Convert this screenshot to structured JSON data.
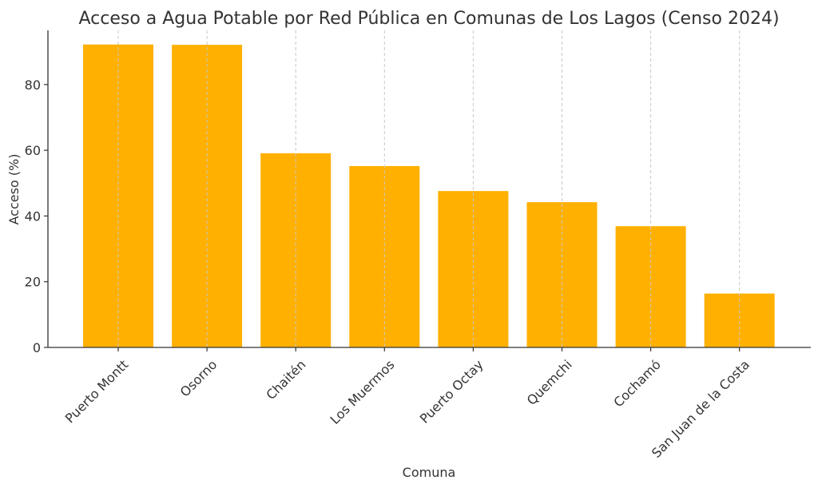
{
  "chart_data": {
    "type": "bar",
    "title": "Acceso a Agua Potable por Red Pública en Comunas de Los Lagos (Censo 2024)",
    "xlabel": "Comuna",
    "ylabel": "Acceso (%)",
    "categories": [
      "Puerto Montt",
      "Osorno",
      "Chaitén",
      "Los Muermos",
      "Puerto Octay",
      "Quemchi",
      "Cochamó",
      "San Juan de la Costa"
    ],
    "values": [
      92.2,
      92.1,
      59.1,
      55.2,
      47.6,
      44.2,
      36.9,
      16.4
    ],
    "ylim": [
      0,
      96.5
    ],
    "yticks": [
      0,
      20,
      40,
      60,
      80
    ],
    "grid": "x-dashed",
    "bar_color": "#ffb000"
  }
}
